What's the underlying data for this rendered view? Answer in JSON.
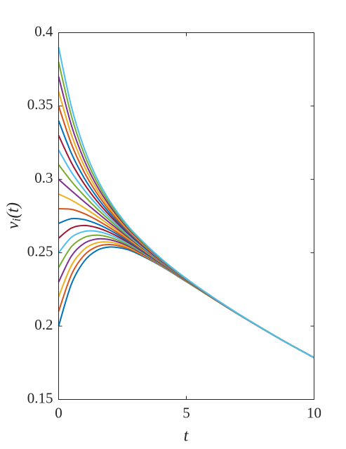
{
  "chart_data": {
    "type": "line",
    "xlabel": "t",
    "ylabel": [
      "v",
      "i",
      "(t)"
    ],
    "x": [
      0,
      0.5,
      1,
      1.5,
      2,
      2.5,
      3,
      4,
      5,
      6,
      7,
      8,
      9,
      10
    ],
    "xlim": [
      0,
      10
    ],
    "xticks": [
      0,
      5,
      10
    ],
    "ylim": [
      0.15,
      0.4
    ],
    "yticks": [
      0.15,
      0.2,
      0.25,
      0.3,
      0.35,
      0.4
    ],
    "grid": false,
    "box": true,
    "linewidth": 2,
    "series": [
      {
        "color": "#0072bd",
        "values": [
          0.2,
          0.2286,
          0.2442,
          0.2516,
          0.2539,
          0.253,
          0.2501,
          0.2411,
          0.2303,
          0.2193,
          0.2084,
          0.198,
          0.188,
          0.1785
        ]
      },
      {
        "color": "#d95319",
        "values": [
          0.21,
          0.235,
          0.2483,
          0.2542,
          0.2556,
          0.2541,
          0.2508,
          0.2414,
          0.2304,
          0.2193,
          0.2084,
          0.198,
          0.188,
          0.1785
        ]
      },
      {
        "color": "#edb120",
        "values": [
          0.22,
          0.2413,
          0.2523,
          0.2568,
          0.2572,
          0.2551,
          0.2514,
          0.2416,
          0.2305,
          0.2193,
          0.2085,
          0.198,
          0.188,
          0.1785
        ]
      },
      {
        "color": "#7e2f8e",
        "values": [
          0.23,
          0.2477,
          0.2564,
          0.2594,
          0.2589,
          0.2562,
          0.2521,
          0.2419,
          0.2306,
          0.2194,
          0.2085,
          0.198,
          0.188,
          0.1785
        ]
      },
      {
        "color": "#77ac30",
        "values": [
          0.24,
          0.2541,
          0.2604,
          0.262,
          0.2605,
          0.2572,
          0.2528,
          0.2422,
          0.2307,
          0.2194,
          0.2085,
          0.1981,
          0.188,
          0.1785
        ]
      },
      {
        "color": "#4dbeee",
        "values": [
          0.25,
          0.2605,
          0.2645,
          0.2646,
          0.2622,
          0.2583,
          0.2535,
          0.2425,
          0.2309,
          0.2195,
          0.2085,
          0.1981,
          0.188,
          0.1785
        ]
      },
      {
        "color": "#a2142f",
        "values": [
          0.26,
          0.2668,
          0.2686,
          0.2671,
          0.2638,
          0.2593,
          0.2541,
          0.2427,
          0.231,
          0.2195,
          0.2085,
          0.1981,
          0.188,
          0.1785
        ]
      },
      {
        "color": "#0072bd",
        "values": [
          0.27,
          0.2732,
          0.2726,
          0.2697,
          0.2655,
          0.2604,
          0.2548,
          0.243,
          0.2311,
          0.2196,
          0.2086,
          0.1981,
          0.188,
          0.1785
        ]
      },
      {
        "color": "#d95319",
        "values": [
          0.28,
          0.2796,
          0.2767,
          0.2723,
          0.2671,
          0.2614,
          0.2555,
          0.2433,
          0.2312,
          0.2196,
          0.2086,
          0.1981,
          0.188,
          0.1785
        ]
      },
      {
        "color": "#edb120",
        "values": [
          0.29,
          0.2859,
          0.2807,
          0.2749,
          0.2688,
          0.2625,
          0.2561,
          0.2435,
          0.2313,
          0.2197,
          0.2086,
          0.1981,
          0.188,
          0.1785
        ]
      },
      {
        "color": "#7e2f8e",
        "values": [
          0.3,
          0.2923,
          0.2848,
          0.2775,
          0.2704,
          0.2635,
          0.2568,
          0.2438,
          0.2314,
          0.2197,
          0.2086,
          0.1981,
          0.188,
          0.1785
        ]
      },
      {
        "color": "#77ac30",
        "values": [
          0.31,
          0.2987,
          0.2889,
          0.2801,
          0.2721,
          0.2646,
          0.2575,
          0.2441,
          0.2315,
          0.2197,
          0.2086,
          0.1981,
          0.188,
          0.1785
        ]
      },
      {
        "color": "#4dbeee",
        "values": [
          0.32,
          0.305,
          0.2929,
          0.2827,
          0.2737,
          0.2656,
          0.2581,
          0.2443,
          0.2316,
          0.2198,
          0.2086,
          0.1981,
          0.188,
          0.1785
        ]
      },
      {
        "color": "#a2142f",
        "values": [
          0.33,
          0.3114,
          0.297,
          0.2853,
          0.2754,
          0.2667,
          0.2588,
          0.2446,
          0.2317,
          0.2198,
          0.2087,
          0.1981,
          0.188,
          0.1785
        ]
      },
      {
        "color": "#0072bd",
        "values": [
          0.34,
          0.3178,
          0.301,
          0.2879,
          0.277,
          0.2677,
          0.2595,
          0.2449,
          0.2318,
          0.2199,
          0.2087,
          0.1981,
          0.188,
          0.1785
        ]
      },
      {
        "color": "#d95319",
        "values": [
          0.35,
          0.3242,
          0.3051,
          0.2905,
          0.2787,
          0.2688,
          0.2602,
          0.2452,
          0.232,
          0.2199,
          0.2087,
          0.1981,
          0.188,
          0.1785
        ]
      },
      {
        "color": "#edb120",
        "values": [
          0.36,
          0.3305,
          0.3092,
          0.293,
          0.2803,
          0.2698,
          0.2608,
          0.2454,
          0.2321,
          0.22,
          0.2087,
          0.1981,
          0.188,
          0.1785
        ]
      },
      {
        "color": "#7e2f8e",
        "values": [
          0.37,
          0.3369,
          0.3132,
          0.2956,
          0.282,
          0.2709,
          0.2615,
          0.2457,
          0.2322,
          0.22,
          0.2087,
          0.1981,
          0.188,
          0.1785
        ]
      },
      {
        "color": "#77ac30",
        "values": [
          0.38,
          0.3433,
          0.3173,
          0.2982,
          0.2836,
          0.2719,
          0.2622,
          0.246,
          0.2323,
          0.2201,
          0.2087,
          0.1982,
          0.188,
          0.1785
        ]
      },
      {
        "color": "#4dbeee",
        "values": [
          0.39,
          0.3496,
          0.3213,
          0.3008,
          0.2853,
          0.273,
          0.2628,
          0.2462,
          0.2324,
          0.2201,
          0.2088,
          0.1981,
          0.188,
          0.1785
        ]
      }
    ]
  }
}
